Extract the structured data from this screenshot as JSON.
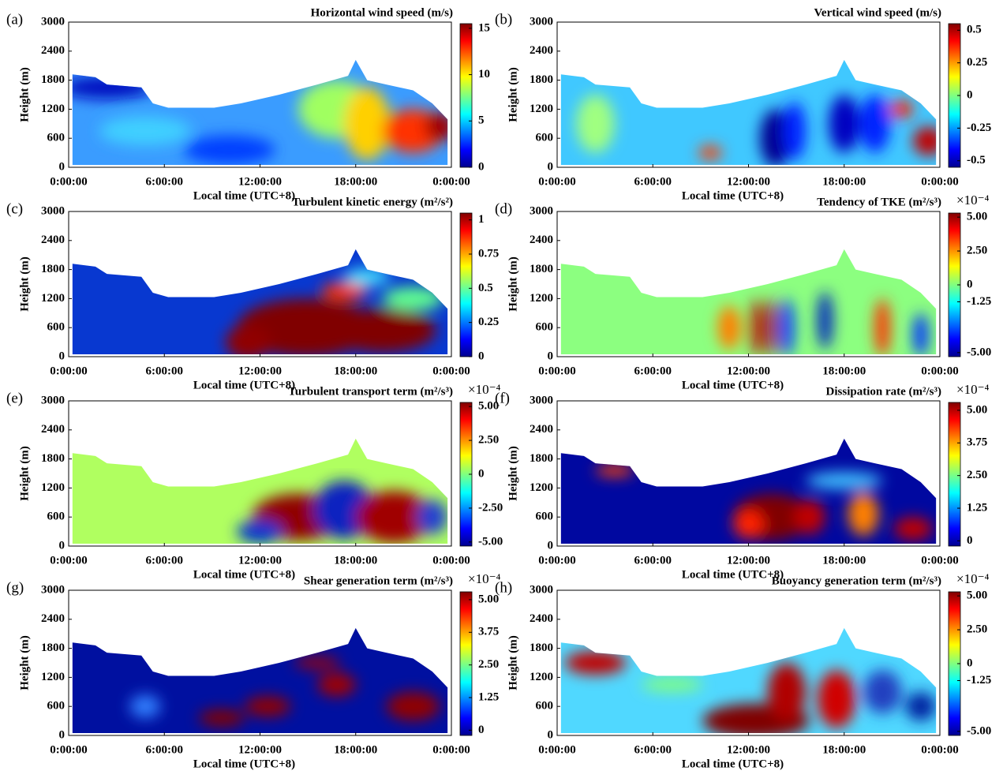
{
  "chart_data": [
    {
      "type": "heatmap",
      "panel_label": "(a)",
      "title": "Horizontal wind speed (m/s)",
      "xlabel": "Local time (UTC+8)",
      "ylabel": "Height (m)",
      "xlim": [
        0,
        24
      ],
      "xticks": [
        {
          "value": 0,
          "label": "0:00:00"
        },
        {
          "value": 6,
          "label": "6:00:00"
        },
        {
          "value": 12,
          "label": "12:00:00"
        },
        {
          "value": 18,
          "label": "18:00:00"
        },
        {
          "value": 24,
          "label": "0:00:00"
        }
      ],
      "ylim": [
        0,
        3000
      ],
      "yticks": [
        0,
        600,
        1200,
        1800,
        2400,
        3000
      ],
      "clim": [
        0,
        15.5
      ],
      "cticks": [
        0,
        5,
        10,
        15
      ]
    },
    {
      "type": "heatmap",
      "panel_label": "(b)",
      "title": "Vertical wind speed (m/s)",
      "xlabel": "Local time (UTC+8)",
      "ylabel": "Height (m)",
      "xlim": [
        0,
        24
      ],
      "xticks": [
        {
          "value": 0,
          "label": "0:00:00"
        },
        {
          "value": 6,
          "label": "6:00:00"
        },
        {
          "value": 12,
          "label": "12:00:00"
        },
        {
          "value": 18,
          "label": "18:00:00"
        },
        {
          "value": 24,
          "label": "0:00:00"
        }
      ],
      "ylim": [
        0,
        3000
      ],
      "yticks": [
        0,
        600,
        1200,
        1800,
        2400,
        3000
      ],
      "clim": [
        -0.55,
        0.55
      ],
      "cticks": [
        -0.5,
        -0.25,
        0,
        0.25,
        0.5
      ]
    },
    {
      "type": "heatmap",
      "panel_label": "(c)",
      "title": "Turbulent kinetic energy (m²/s²)",
      "xlabel": "Local time (UTC+8)",
      "ylabel": "Height (m)",
      "xlim": [
        0,
        24
      ],
      "xticks": [
        {
          "value": 0,
          "label": "0:00:00"
        },
        {
          "value": 6,
          "label": "6:00:00"
        },
        {
          "value": 12,
          "label": "12:00:00"
        },
        {
          "value": 18,
          "label": "18:00:00"
        },
        {
          "value": 24,
          "label": "0:00:00"
        }
      ],
      "ylim": [
        0,
        3000
      ],
      "yticks": [
        0,
        600,
        1200,
        1800,
        2400,
        3000
      ],
      "clim": [
        0,
        1.05
      ],
      "cticks": [
        0,
        0.25,
        0.5,
        0.75,
        1
      ]
    },
    {
      "type": "heatmap",
      "panel_label": "(d)",
      "title": "Tendency of TKE  (m²/s³)",
      "multiplier": "×10⁻⁴",
      "xlabel": "Local time (UTC+8)",
      "ylabel": "Height (m)",
      "xlim": [
        0,
        24
      ],
      "xticks": [
        {
          "value": 0,
          "label": "0:00:00"
        },
        {
          "value": 6,
          "label": "6:00:00"
        },
        {
          "value": 12,
          "label": "12:00:00"
        },
        {
          "value": 18,
          "label": "18:00:00"
        },
        {
          "value": 24,
          "label": "0:00:00"
        }
      ],
      "ylim": [
        0,
        3000
      ],
      "yticks": [
        0,
        600,
        1200,
        1800,
        2400,
        3000
      ],
      "clim": [
        -5.3,
        5.3
      ],
      "cticks": [
        {
          "value": -5,
          "label": "-5.00"
        },
        {
          "value": -1.25,
          "label": "-1.25"
        },
        0,
        {
          "value": 2.5,
          "label": "2.50"
        },
        {
          "value": 5,
          "label": "5.00"
        }
      ]
    },
    {
      "type": "heatmap",
      "panel_label": "(e)",
      "title": "Turbulent transport term (m²/s³)",
      "multiplier": "×10⁻⁴",
      "xlabel": "Local time (UTC+8)",
      "ylabel": "Height (m)",
      "xlim": [
        0,
        24
      ],
      "xticks": [
        {
          "value": 0,
          "label": "0:00:00"
        },
        {
          "value": 6,
          "label": "6:00:00"
        },
        {
          "value": 12,
          "label": "12:00:00"
        },
        {
          "value": 18,
          "label": "18:00:00"
        },
        {
          "value": 24,
          "label": "0:00:00"
        }
      ],
      "ylim": [
        0,
        3000
      ],
      "yticks": [
        0,
        600,
        1200,
        1800,
        2400,
        3000
      ],
      "clim": [
        -5.3,
        5.3
      ],
      "cticks": [
        {
          "value": -5,
          "label": "-5.00"
        },
        {
          "value": -2.5,
          "label": "-2.50"
        },
        0,
        {
          "value": 2.5,
          "label": "2.50"
        },
        {
          "value": 5,
          "label": "5.00"
        }
      ]
    },
    {
      "type": "heatmap",
      "panel_label": "(f)",
      "title": "Dissipation rate (m²/s³)",
      "multiplier": "×10⁻⁴",
      "xlabel": "Local time (UTC+8)",
      "ylabel": "Height (m)",
      "xlim": [
        0,
        24
      ],
      "xticks": [
        {
          "value": 0,
          "label": "0:00:00"
        },
        {
          "value": 6,
          "label": "6:00:00"
        },
        {
          "value": 12,
          "label": "12:00:00"
        },
        {
          "value": 18,
          "label": "18:00:00"
        },
        {
          "value": 24,
          "label": "0:00:00"
        }
      ],
      "ylim": [
        0,
        3000
      ],
      "yticks": [
        0,
        600,
        1200,
        1800,
        2400,
        3000
      ],
      "clim": [
        -0.2,
        5.3
      ],
      "cticks": [
        0,
        {
          "value": 1.25,
          "label": "1.25"
        },
        {
          "value": 2.5,
          "label": "2.50"
        },
        {
          "value": 3.75,
          "label": "3.75"
        },
        {
          "value": 5,
          "label": "5.00"
        }
      ]
    },
    {
      "type": "heatmap",
      "panel_label": "(g)",
      "title": "Shear generation term (m²/s³)",
      "multiplier": "×10⁻⁴",
      "xlabel": "Local time (UTC+8)",
      "ylabel": "Height (m)",
      "xlim": [
        0,
        24
      ],
      "xticks": [
        {
          "value": 0,
          "label": "0:00:00"
        },
        {
          "value": 6,
          "label": "6:00:00"
        },
        {
          "value": 12,
          "label": "12:00:00"
        },
        {
          "value": 18,
          "label": "18:00:00"
        },
        {
          "value": 24,
          "label": "0:00:00"
        }
      ],
      "ylim": [
        0,
        3000
      ],
      "yticks": [
        0,
        600,
        1200,
        1800,
        2400,
        3000
      ],
      "clim": [
        -0.2,
        5.3
      ],
      "cticks": [
        0,
        {
          "value": 1.25,
          "label": "1.25"
        },
        {
          "value": 2.5,
          "label": "2.50"
        },
        {
          "value": 3.75,
          "label": "3.75"
        },
        {
          "value": 5,
          "label": "5.00"
        }
      ]
    },
    {
      "type": "heatmap",
      "panel_label": "(h)",
      "title": "Buoyancy generation term (m²/s³)",
      "multiplier": "×10⁻⁴",
      "xlabel": "Local time (UTC+8)",
      "ylabel": "Height (m)",
      "xlim": [
        0,
        24
      ],
      "xticks": [
        {
          "value": 0,
          "label": "0:00:00"
        },
        {
          "value": 6,
          "label": "6:00:00"
        },
        {
          "value": 12,
          "label": "12:00:00"
        },
        {
          "value": 18,
          "label": "18:00:00"
        },
        {
          "value": 24,
          "label": "0:00:00"
        }
      ],
      "ylim": [
        0,
        3000
      ],
      "yticks": [
        0,
        600,
        1200,
        1800,
        2400,
        3000
      ],
      "clim": [
        -5.3,
        5.3
      ],
      "cticks": [
        {
          "value": -5,
          "label": "-5.00"
        },
        {
          "value": -1.25,
          "label": "-1.25"
        },
        0,
        {
          "value": 2.5,
          "label": "2.50"
        },
        {
          "value": 5,
          "label": "5.00"
        }
      ]
    }
  ]
}
